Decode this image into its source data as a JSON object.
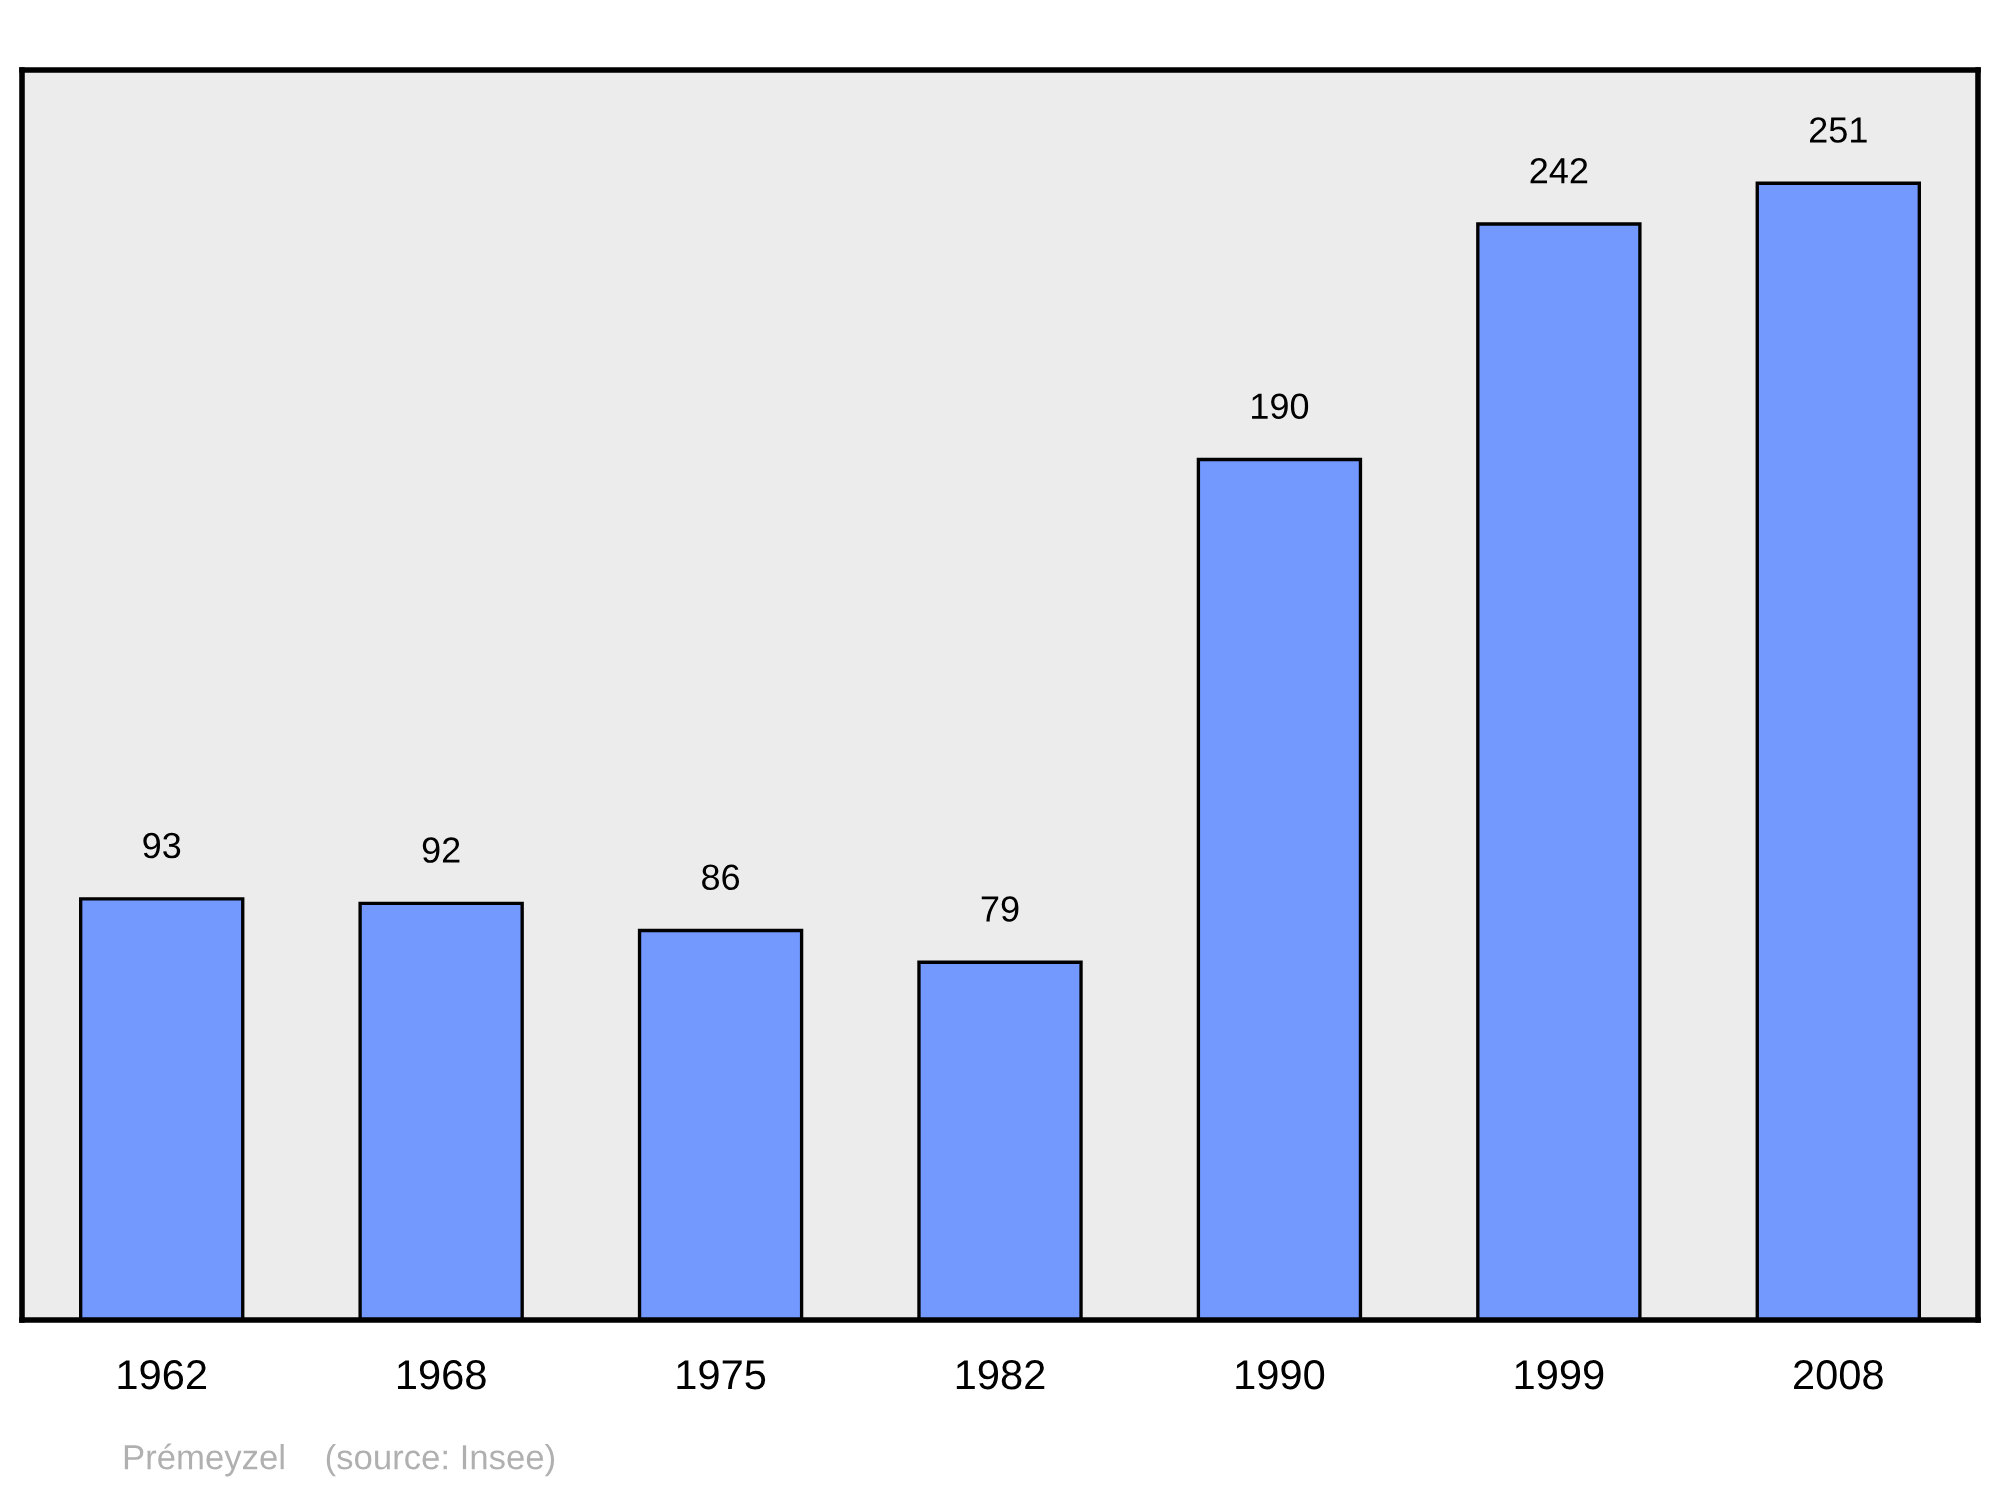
{
  "chart_data": {
    "type": "bar",
    "categories": [
      "1962",
      "1968",
      "1975",
      "1982",
      "1990",
      "1999",
      "2008"
    ],
    "values": [
      93,
      92,
      86,
      79,
      190,
      242,
      251
    ],
    "color": "#7399ff",
    "ylim": [
      0,
      276
    ],
    "data_labels": true,
    "tick_labels": "x",
    "grid": false,
    "annotations": [
      "Prémeyzel    (source: Insee)"
    ]
  }
}
